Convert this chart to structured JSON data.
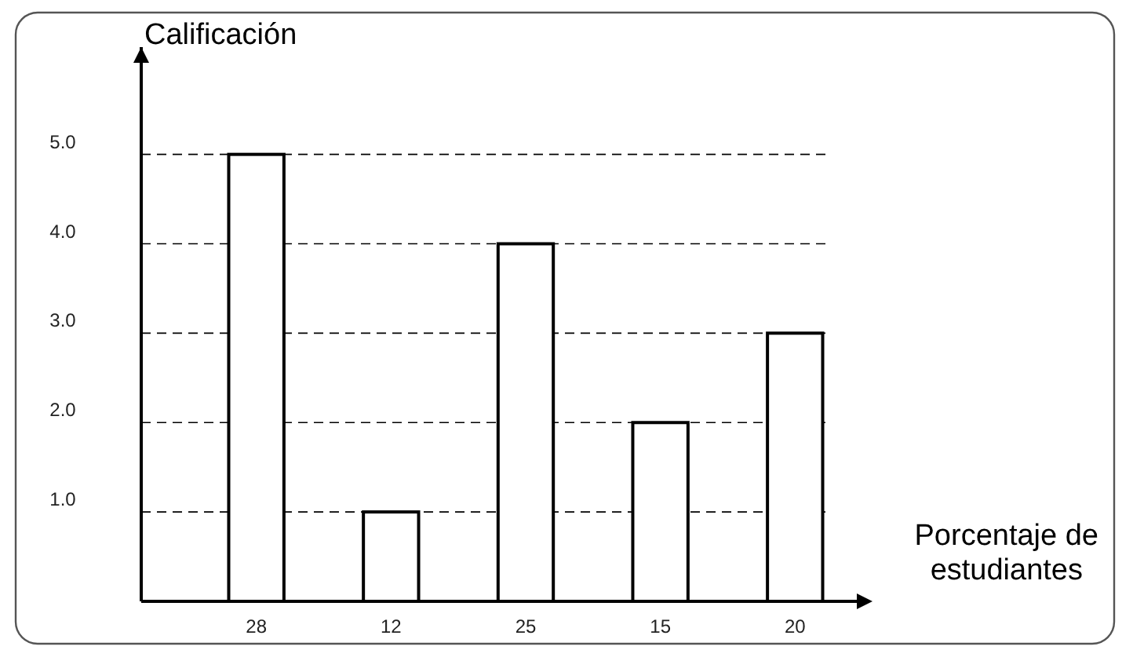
{
  "chart_data": {
    "type": "bar",
    "ylabel": "Calificación",
    "xlabel": "Porcentaje de estudiantes",
    "categories": [
      "28",
      "12",
      "25",
      "15",
      "20"
    ],
    "values": [
      5,
      1,
      4,
      2,
      3
    ],
    "color": "#ffffff",
    "ylim": [
      0,
      6.2
    ],
    "yticks": [
      {
        "value": 1,
        "label": "1.0"
      },
      {
        "value": 2,
        "label": "2.0"
      },
      {
        "value": 3,
        "label": "3.0"
      },
      {
        "value": 4,
        "label": "4.0"
      },
      {
        "value": 5,
        "label": "5.0"
      }
    ],
    "grid": "y",
    "line_style": "dashed"
  }
}
